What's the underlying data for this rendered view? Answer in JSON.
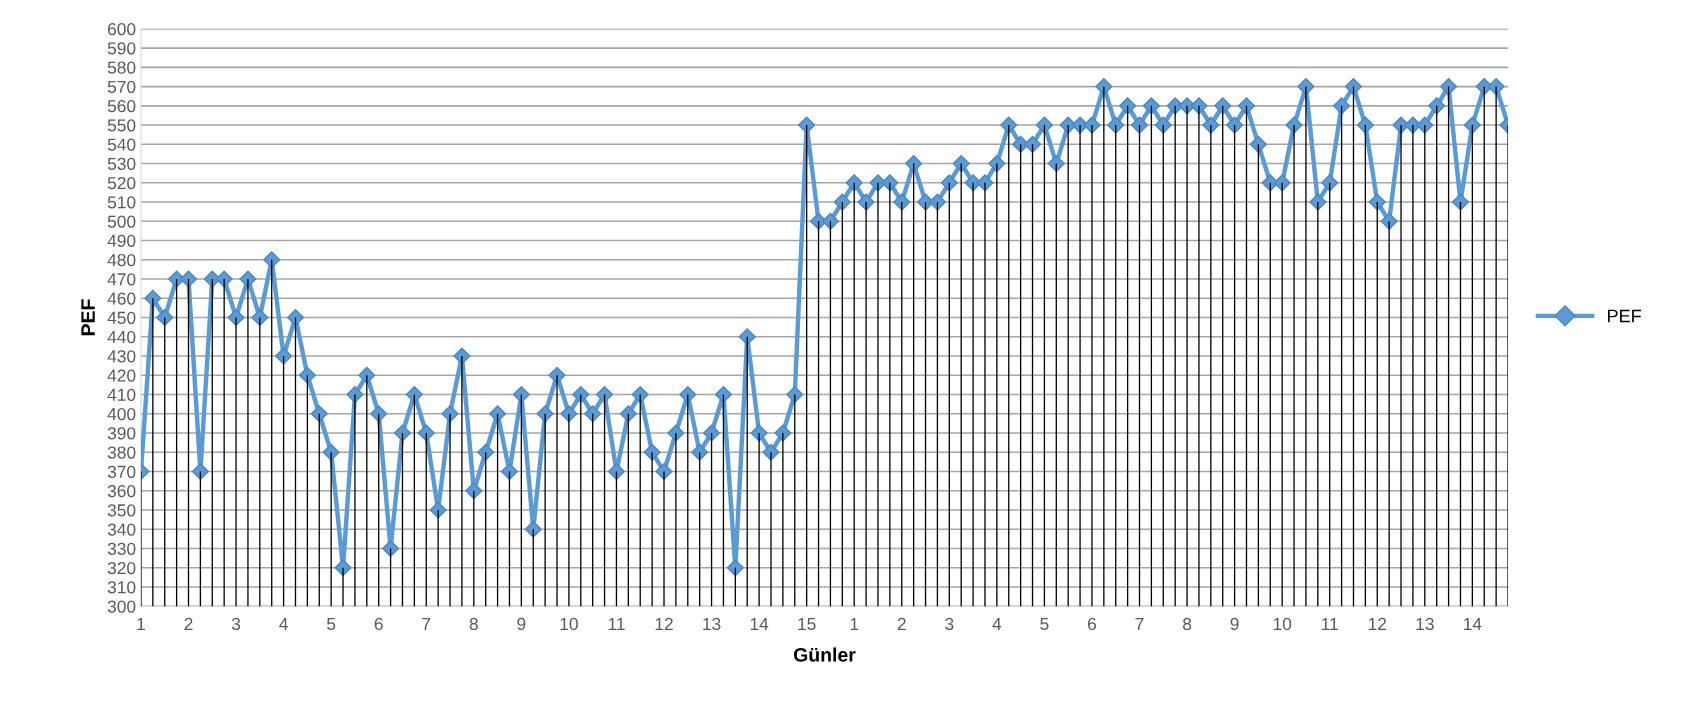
{
  "chart_data": {
    "type": "line",
    "xlabel": "Günler",
    "ylabel": "PEF",
    "categories": [
      "1",
      null,
      null,
      null,
      "2",
      null,
      null,
      null,
      "3",
      null,
      null,
      null,
      "4",
      null,
      null,
      null,
      "5",
      null,
      null,
      null,
      "6",
      null,
      null,
      null,
      "7",
      null,
      null,
      null,
      "8",
      null,
      null,
      null,
      "9",
      null,
      null,
      null,
      "10",
      null,
      null,
      null,
      "11",
      null,
      null,
      null,
      "12",
      null,
      null,
      null,
      "13",
      null,
      null,
      null,
      "14",
      null,
      null,
      null,
      "15",
      null,
      null,
      null,
      "1",
      null,
      null,
      null,
      "2",
      null,
      null,
      null,
      "3",
      null,
      null,
      null,
      "4",
      null,
      null,
      null,
      "5",
      null,
      null,
      null,
      "6",
      null,
      null,
      null,
      "7",
      null,
      null,
      null,
      "8",
      null,
      null,
      null,
      "9",
      null,
      null,
      null,
      "10",
      null,
      null,
      null,
      "11",
      null,
      null,
      null,
      "12",
      null,
      null,
      null,
      "13",
      null,
      null,
      null,
      "14",
      null,
      null,
      null
    ],
    "series": [
      {
        "type": "bar",
        "color": "#000000",
        "values": [
          370,
          460,
          450,
          470,
          470,
          370,
          470,
          470,
          450,
          470,
          450,
          480,
          430,
          450,
          420,
          400,
          380,
          320,
          410,
          420,
          400,
          330,
          390,
          410,
          390,
          350,
          400,
          430,
          360,
          380,
          400,
          370,
          410,
          340,
          400,
          420,
          400,
          410,
          400,
          410,
          370,
          400,
          410,
          380,
          370,
          390,
          410,
          380,
          390,
          410,
          320,
          440,
          390,
          380,
          390,
          410,
          550,
          500,
          500,
          510,
          520,
          510,
          520,
          520,
          510,
          530,
          510,
          510,
          520,
          530,
          520,
          520,
          530,
          550,
          540,
          540,
          550,
          530,
          550,
          550,
          550,
          570,
          550,
          560,
          550,
          560,
          550,
          560,
          560,
          560,
          550,
          560,
          550,
          560,
          540,
          520,
          520,
          550,
          570,
          510,
          520,
          560,
          570,
          550,
          510,
          500,
          550,
          550,
          550,
          560,
          570,
          510,
          550,
          570,
          570,
          550
        ]
      },
      {
        "name": "PEF",
        "color": "#5b9bd5",
        "values": [
          370,
          460,
          450,
          470,
          470,
          370,
          470,
          470,
          450,
          470,
          450,
          480,
          430,
          450,
          420,
          400,
          380,
          320,
          410,
          420,
          400,
          330,
          390,
          410,
          390,
          350,
          400,
          430,
          360,
          380,
          400,
          370,
          410,
          340,
          400,
          420,
          400,
          410,
          400,
          410,
          370,
          400,
          410,
          380,
          370,
          390,
          410,
          380,
          390,
          410,
          320,
          440,
          390,
          380,
          390,
          410,
          550,
          500,
          500,
          510,
          520,
          510,
          520,
          520,
          510,
          530,
          510,
          510,
          520,
          530,
          520,
          520,
          530,
          550,
          540,
          540,
          550,
          530,
          550,
          550,
          550,
          570,
          550,
          560,
          550,
          560,
          550,
          560,
          560,
          560,
          550,
          560,
          550,
          560,
          540,
          520,
          520,
          550,
          570,
          510,
          520,
          560,
          570,
          550,
          510,
          500,
          550,
          550,
          550,
          560,
          570,
          510,
          550,
          570,
          570,
          550
        ]
      }
    ],
    "ylim": [
      300,
      600
    ],
    "yticks": [
      300,
      310,
      320,
      330,
      340,
      350,
      360,
      370,
      380,
      390,
      400,
      410,
      420,
      430,
      440,
      450,
      460,
      470,
      480,
      490,
      500,
      510,
      520,
      530,
      540,
      550,
      560,
      570,
      580,
      590,
      600
    ],
    "grid": "y",
    "legend": "right",
    "marker": "diamond",
    "line_style": "solid"
  }
}
